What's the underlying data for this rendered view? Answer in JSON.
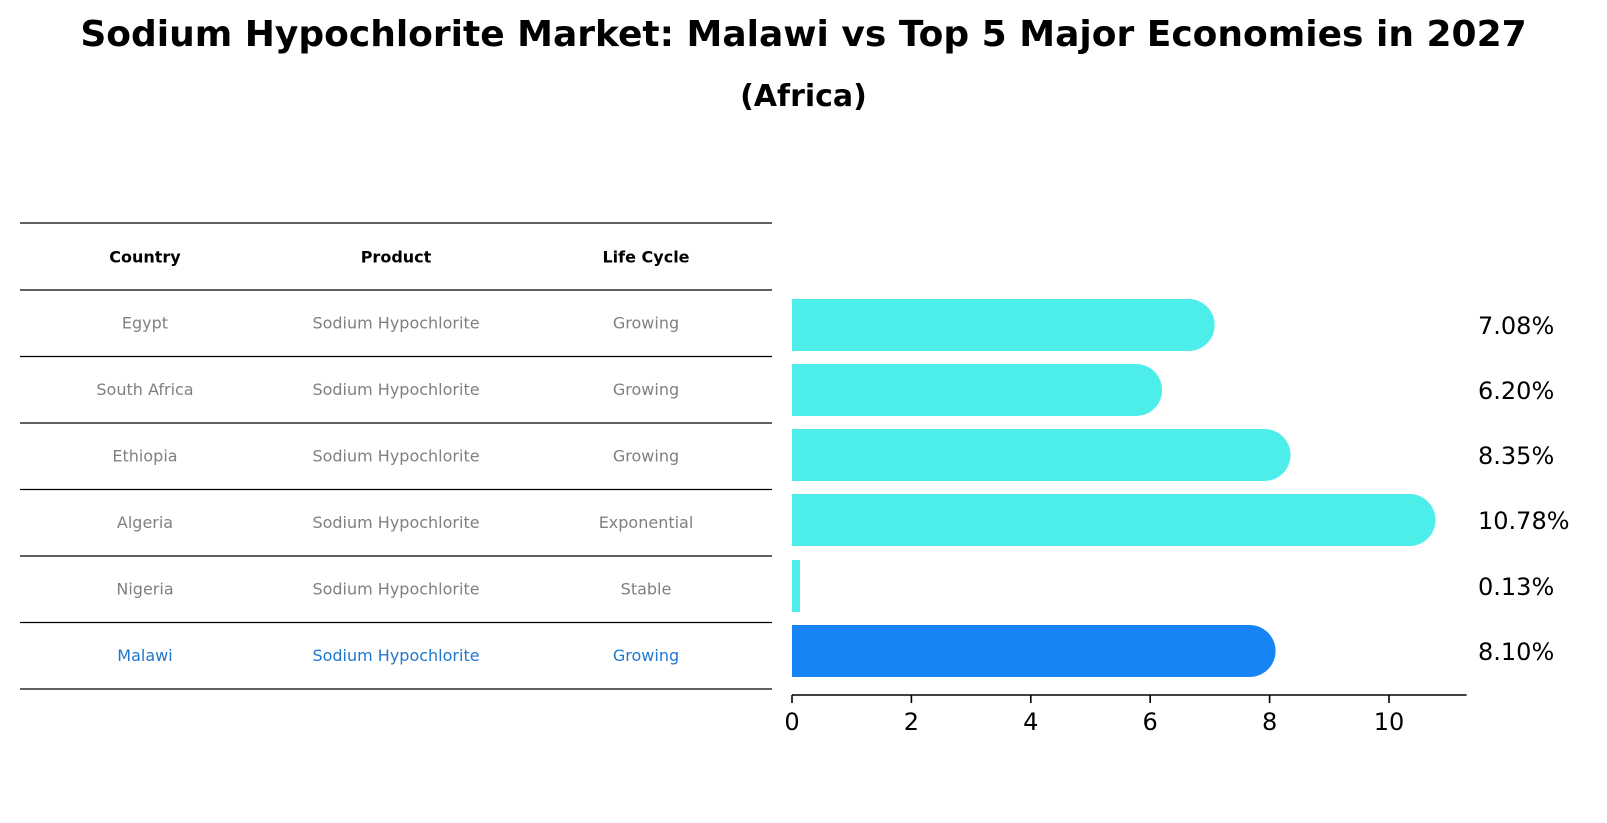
{
  "title": "Sodium Hypochlorite Market: Malawi vs Top 5 Major Economies in 2027",
  "subtitle": "(Africa)",
  "table": {
    "headers": [
      "Country",
      "Product",
      "Life Cycle"
    ],
    "rows": [
      {
        "country": "Egypt",
        "product": "Sodium Hypochlorite",
        "life_cycle": "Growing",
        "highlight": false
      },
      {
        "country": "South Africa",
        "product": "Sodium Hypochlorite",
        "life_cycle": "Growing",
        "highlight": false
      },
      {
        "country": "Ethiopia",
        "product": "Sodium Hypochlorite",
        "life_cycle": "Growing",
        "highlight": false
      },
      {
        "country": "Algeria",
        "product": "Sodium Hypochlorite",
        "life_cycle": "Exponential",
        "highlight": false
      },
      {
        "country": "Nigeria",
        "product": "Sodium Hypochlorite",
        "life_cycle": "Stable",
        "highlight": false
      },
      {
        "country": "Malawi",
        "product": "Sodium Hypochlorite",
        "life_cycle": "Growing",
        "highlight": true
      }
    ]
  },
  "chart_data": {
    "type": "bar",
    "orientation": "horizontal",
    "categories": [
      "Egypt",
      "South Africa",
      "Ethiopia",
      "Algeria",
      "Nigeria",
      "Malawi"
    ],
    "values": [
      7.08,
      6.2,
      8.35,
      10.78,
      0.13,
      8.1
    ],
    "value_labels": [
      "7.08%",
      "6.20%",
      "8.35%",
      "10.78%",
      "0.13%",
      "8.10%"
    ],
    "xticks": [
      0,
      2,
      4,
      6,
      8,
      10
    ],
    "xlim": [
      0,
      11.3
    ],
    "grid": false
  },
  "colors": {
    "bar": "#4deeea",
    "highlight_bar": "#1785f5",
    "text_default": "#808080",
    "text_highlight": "#1f77d0",
    "line": "#000000"
  }
}
